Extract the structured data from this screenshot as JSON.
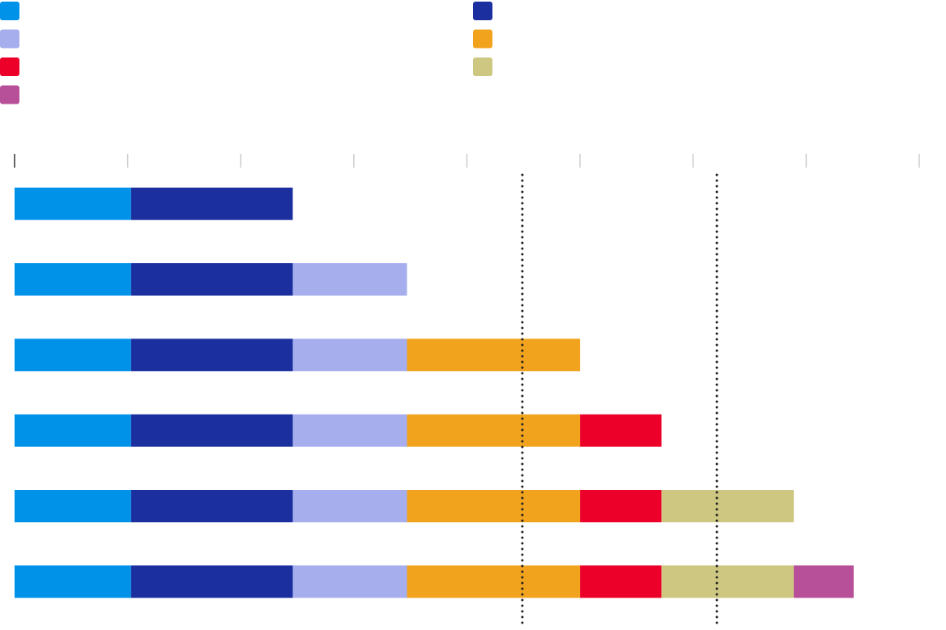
{
  "chart_data": {
    "type": "stacked_bar_horizontal",
    "categories": [
      null,
      null,
      null,
      null,
      null,
      null
    ],
    "series": [
      {
        "color": "#0091e8",
        "values": [
          1.03,
          1.03,
          1.03,
          1.03,
          1.03,
          1.03
        ]
      },
      {
        "color": "#1b2f9e",
        "values": [
          1.43,
          1.43,
          1.43,
          1.43,
          1.43,
          1.43
        ]
      },
      {
        "color": "#a6aeee",
        "values": [
          null,
          1.01,
          1.01,
          1.01,
          1.01,
          1.01
        ]
      },
      {
        "color": "#f2a31e",
        "values": [
          null,
          null,
          1.53,
          1.53,
          1.53,
          1.53
        ]
      },
      {
        "color": "#ec0029",
        "values": [
          null,
          null,
          null,
          0.72,
          0.72,
          0.72
        ]
      },
      {
        "color": "#cec781",
        "values": [
          null,
          null,
          null,
          null,
          1.17,
          1.17
        ]
      },
      {
        "color": "#b84f99",
        "values": [
          null,
          null,
          null,
          null,
          null,
          0.53
        ]
      }
    ],
    "xlim": [
      0,
      8
    ],
    "xticks": [
      0,
      1,
      2,
      3,
      4,
      5,
      6,
      7,
      8
    ],
    "reference_lines": [
      4.49,
      6.21
    ]
  }
}
